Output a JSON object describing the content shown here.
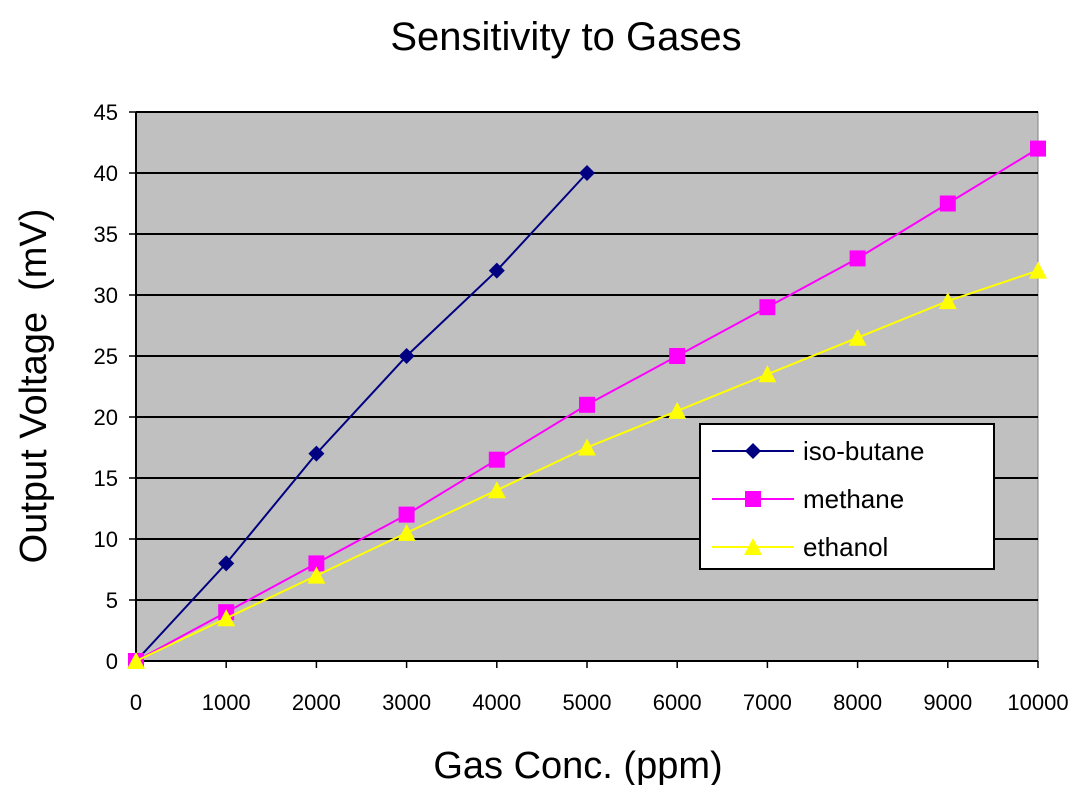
{
  "chart_data": {
    "type": "line",
    "title": "Sensitivity to Gases",
    "xlabel": "Gas Conc. (ppm)",
    "ylabel": "Output Voltage  (mV)",
    "xlim": [
      0,
      10000
    ],
    "ylim": [
      0,
      45
    ],
    "xticks": [
      0,
      1000,
      2000,
      3000,
      4000,
      5000,
      6000,
      7000,
      8000,
      9000,
      10000
    ],
    "yticks": [
      0,
      5,
      10,
      15,
      20,
      25,
      30,
      35,
      40,
      45
    ],
    "grid": true,
    "legend_position": "center-right",
    "plot_background": "#c0c0c0",
    "series": [
      {
        "name": "iso-butane",
        "color": "#000080",
        "marker": "diamond",
        "points": [
          [
            0,
            0
          ],
          [
            1000,
            8
          ],
          [
            2000,
            17
          ],
          [
            3000,
            25
          ],
          [
            4000,
            32
          ],
          [
            5000,
            40
          ]
        ]
      },
      {
        "name": "methane",
        "color": "#ff00ff",
        "marker": "square",
        "points": [
          [
            0,
            0
          ],
          [
            1000,
            4
          ],
          [
            2000,
            8
          ],
          [
            3000,
            12
          ],
          [
            4000,
            16.5
          ],
          [
            5000,
            21
          ],
          [
            6000,
            25
          ],
          [
            7000,
            29
          ],
          [
            8000,
            33
          ],
          [
            9000,
            37.5
          ],
          [
            10000,
            42
          ]
        ]
      },
      {
        "name": "ethanol",
        "color": "#ffff00",
        "marker": "triangle",
        "points": [
          [
            0,
            0
          ],
          [
            1000,
            3.5
          ],
          [
            2000,
            7
          ],
          [
            3000,
            10.5
          ],
          [
            4000,
            14
          ],
          [
            5000,
            17.5
          ],
          [
            6000,
            20.5
          ],
          [
            7000,
            23.5
          ],
          [
            8000,
            26.5
          ],
          [
            9000,
            29.5
          ],
          [
            10000,
            32
          ]
        ]
      }
    ]
  }
}
